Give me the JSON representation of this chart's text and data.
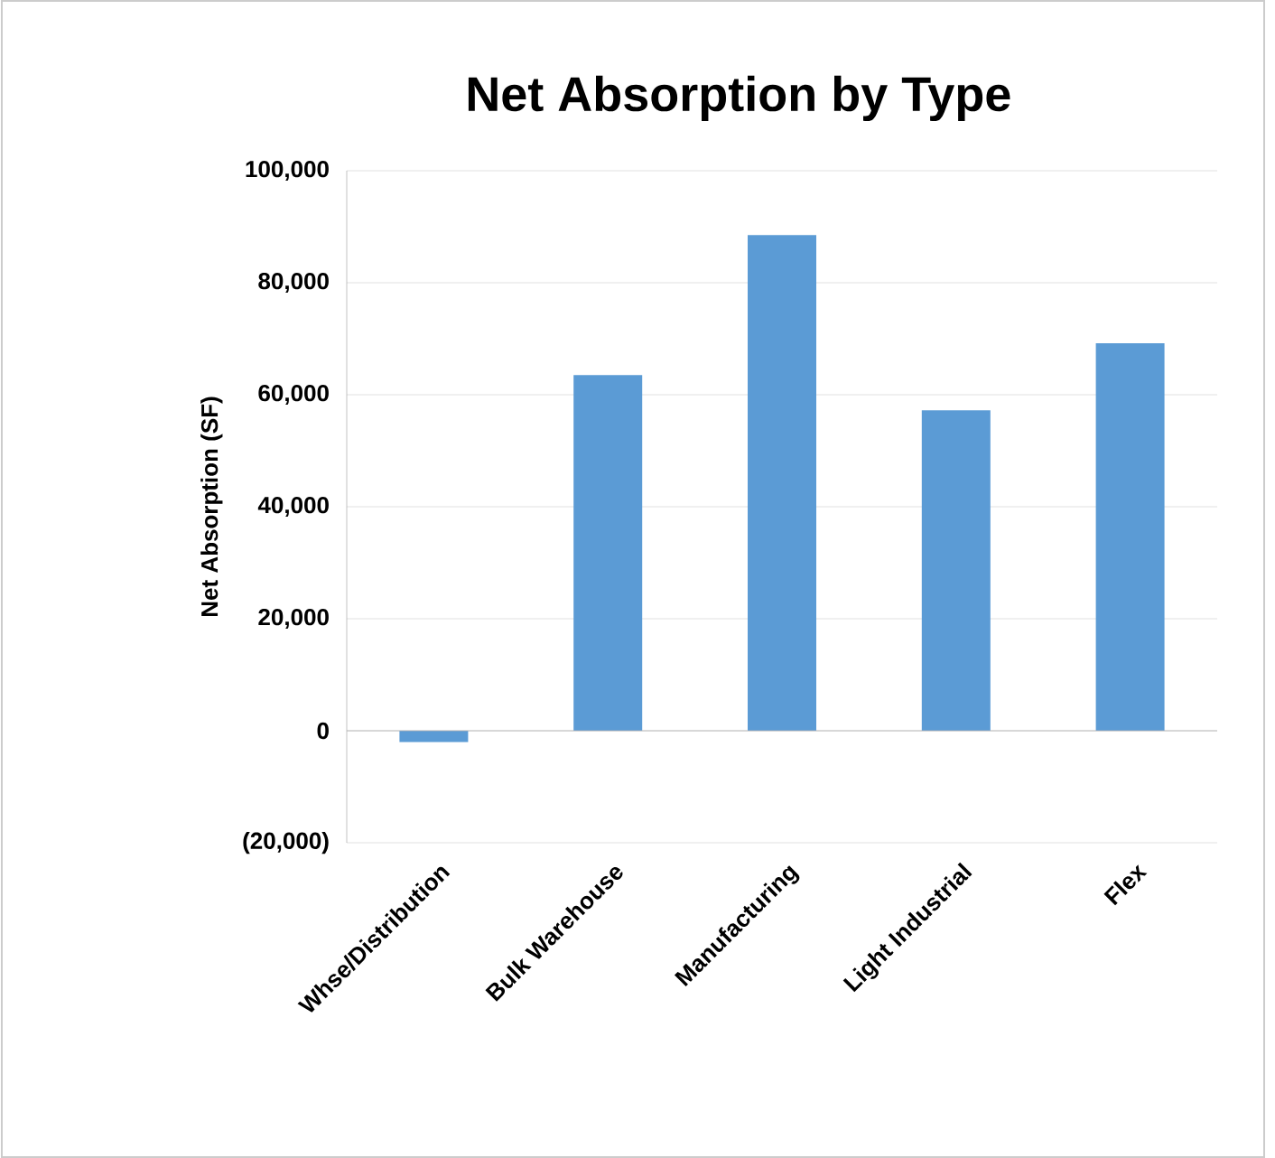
{
  "chart_data": {
    "type": "bar",
    "title": "Net Absorption by Type",
    "ylabel": "Net Absorption (SF)",
    "categories": [
      "Whse/Distribution",
      "Bulk Warehouse",
      "Manufacturing",
      "Light Industrial",
      "Flex"
    ],
    "values": [
      -2000,
      63500,
      88500,
      57200,
      69200
    ],
    "color": "#5b9bd5",
    "ylim": [
      -20000,
      100000
    ],
    "yticks": [
      {
        "value": -20000,
        "label": "(20,000)"
      },
      {
        "value": 0,
        "label": "0"
      },
      {
        "value": 20000,
        "label": "20,000"
      },
      {
        "value": 40000,
        "label": "40,000"
      },
      {
        "value": 60000,
        "label": "60,000"
      },
      {
        "value": 80000,
        "label": "80,000"
      },
      {
        "value": 100000,
        "label": "100,000"
      }
    ],
    "grid": "y"
  }
}
